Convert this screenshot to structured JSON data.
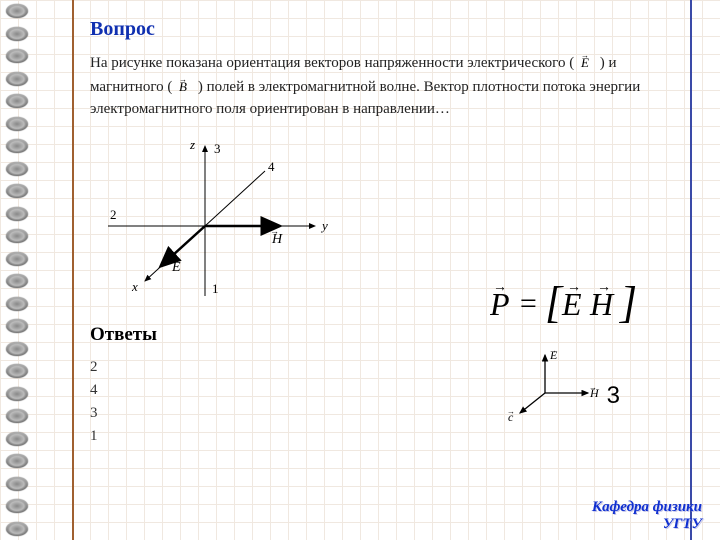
{
  "question_title": "Вопрос",
  "question_text": {
    "part1": "На рисунке показана ориентация векторов напряженности электрического (",
    "sym1": "E",
    "part2": ") и магнитного (",
    "sym2": "B",
    "part3": ") полей в электромагнитной волне. Вектор плотности потока энергии электромагнитного поля ориентирован в направлении…"
  },
  "diagram": {
    "axis_z": "z",
    "axis_y": "y",
    "axis_x": "x",
    "label_1": "1",
    "label_2": "2",
    "label_3": "3",
    "label_4": "4",
    "vec_E": "E",
    "vec_H": "H"
  },
  "answers_title": "Ответы",
  "answers": [
    "2",
    "4",
    "3",
    "1"
  ],
  "formula": {
    "P": "P",
    "eq": "=",
    "E": "E",
    "H": "H"
  },
  "small_diagram": {
    "E": "E",
    "H": "H",
    "c": "c"
  },
  "correct_answer": "3",
  "footer_line1": "Кафедра физики",
  "footer_line2": "УГТУ",
  "colors": {
    "title": "#1030b0",
    "vline_left": "#a06030",
    "vline_right": "#3a4aa8",
    "grid": "#f0e8e0",
    "footer": "#1030d0"
  },
  "spiral_count": 24
}
